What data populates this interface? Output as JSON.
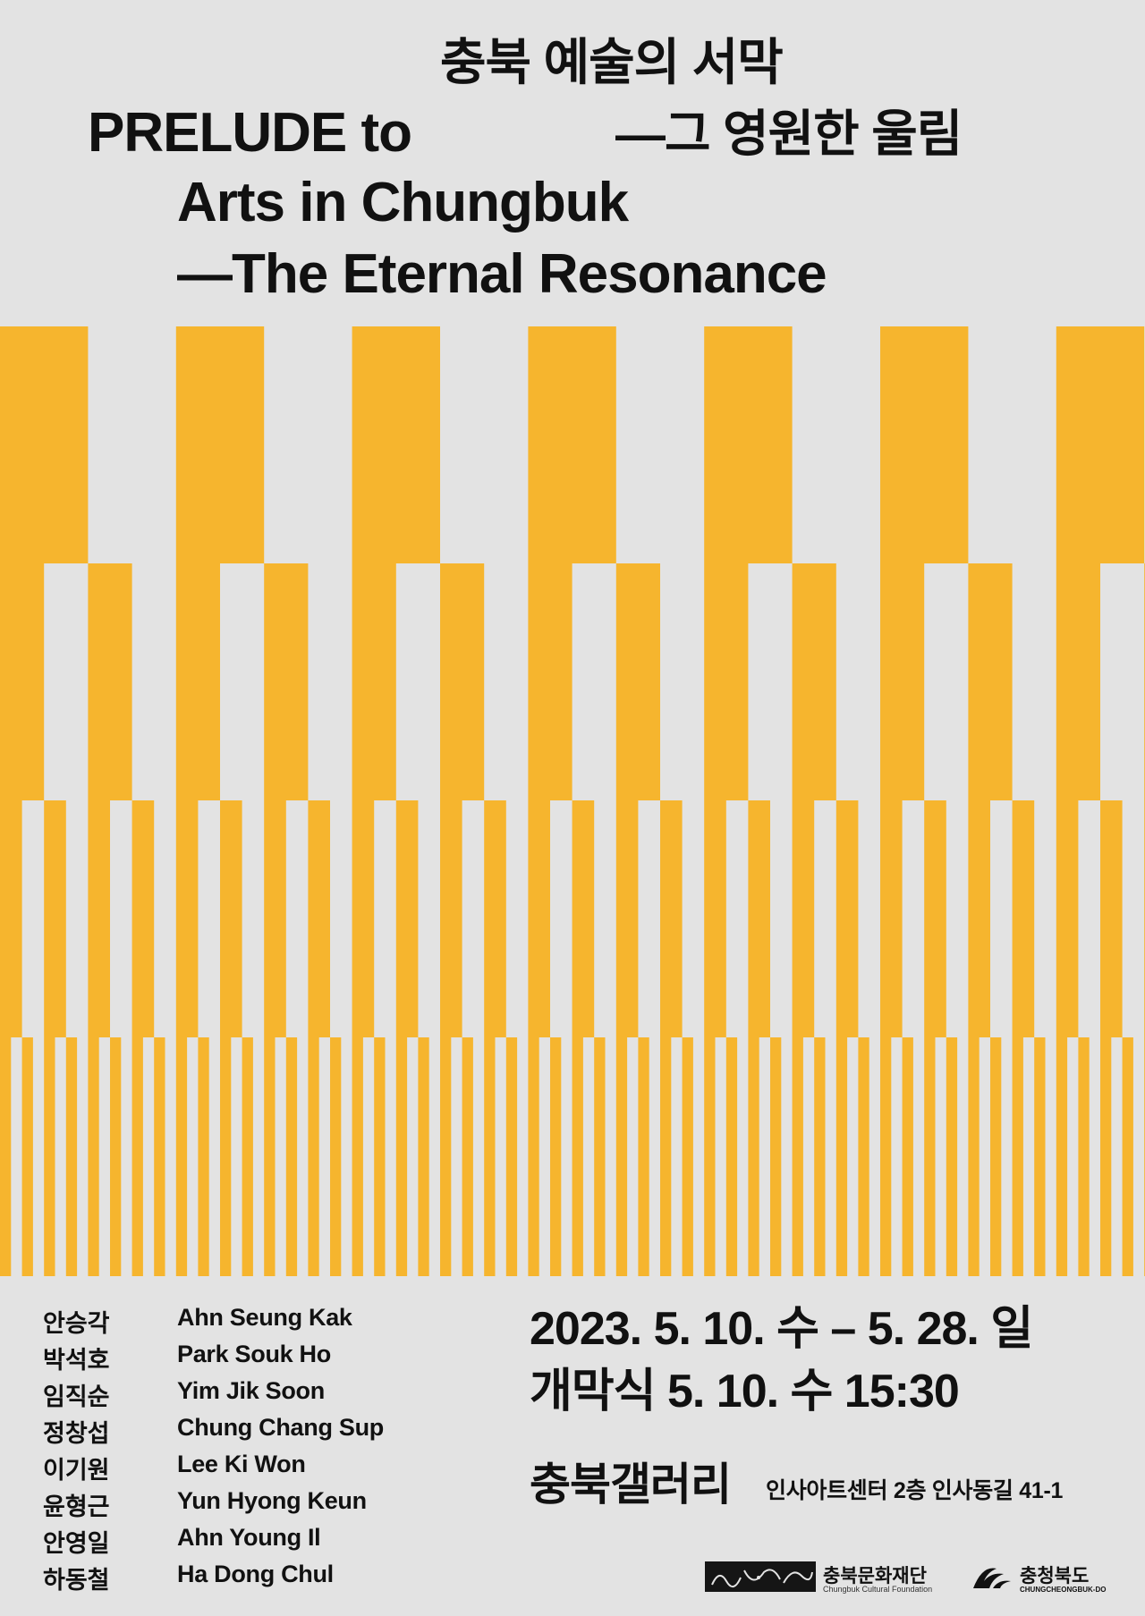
{
  "poster": {
    "title_ko_line1": "충북 예술의 서막",
    "title_ko_line2": "—그 영원한 울림",
    "title_en_line1": "PRELUDE to",
    "title_en_line2": "Arts in Chungbuk",
    "title_en_line3": "—The Eternal Resonance",
    "accent_color": "#f6b52e",
    "background_color": "#e3e3e3"
  },
  "artists": [
    {
      "ko": "안승각",
      "en": "Ahn Seung Kak"
    },
    {
      "ko": "박석호",
      "en": "Park Souk Ho"
    },
    {
      "ko": "임직순",
      "en": "Yim Jik Soon"
    },
    {
      "ko": "정창섭",
      "en": "Chung Chang Sup"
    },
    {
      "ko": "이기원",
      "en": "Lee Ki Won"
    },
    {
      "ko": "윤형근",
      "en": "Yun Hyong Keun"
    },
    {
      "ko": "안영일",
      "en": "Ahn Young Il"
    },
    {
      "ko": "하동철",
      "en": "Ha Dong Chul"
    }
  ],
  "event": {
    "dates": "2023. 5. 10. 수 – 5. 28. 일",
    "opening": "개막식  5. 10. 수  15:30",
    "venue": "충북갤러리",
    "address": "인사아트센터 2층 인사동길 41-1"
  },
  "logos": {
    "foundation_ko": "충북문화재단",
    "foundation_en": "Chungbuk Cultural Foundation",
    "province_ko": "충청북도",
    "province_en": "CHUNGCHEONGBUK-DO"
  }
}
